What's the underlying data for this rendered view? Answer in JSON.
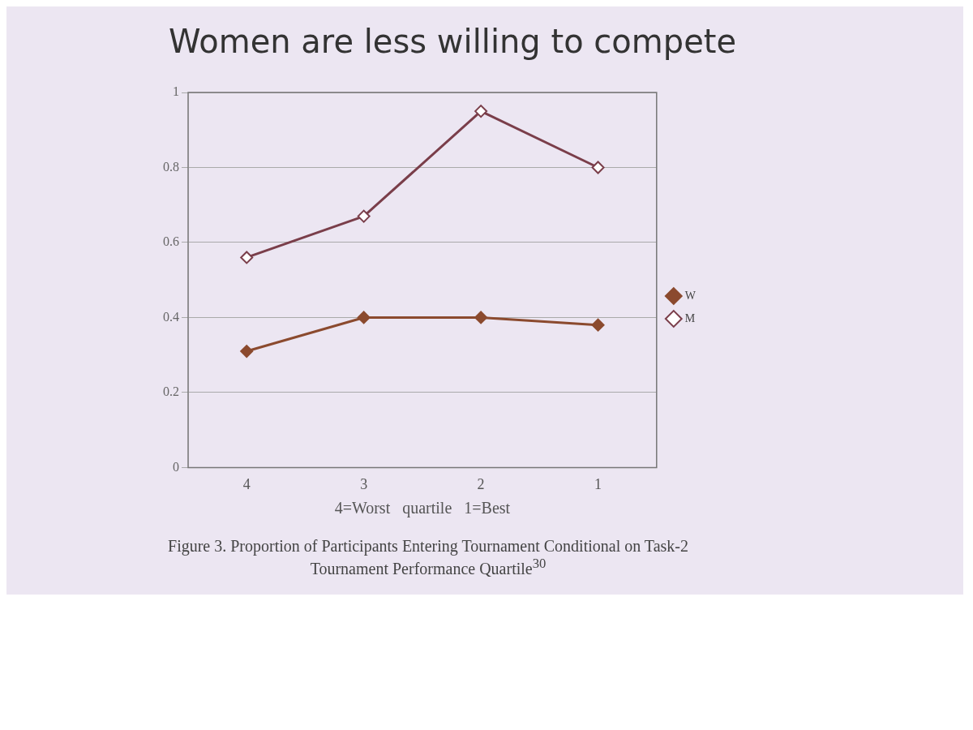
{
  "chart_data": {
    "type": "line",
    "title": "Women are less willing to compete",
    "xlabel": "4=Worst   quartile   1=Best",
    "annotations": [
      "Figure 3. Proportion of Participants Entering Tournament Conditional on Task-2 Tournament Performance Quartile$^{30}$"
    ],
    "categories": [
      "4",
      "3",
      "2",
      "1"
    ],
    "series": [
      {
        "name": "W",
        "color": "#8b4a2e",
        "values": [
          0.31,
          0.4,
          0.4,
          0.38
        ]
      },
      {
        "name": "M",
        "color": "#7a3e4a",
        "values": [
          0.56,
          0.67,
          0.95,
          0.8
        ]
      }
    ],
    "ylim": [
      0,
      1
    ],
    "yticks": [
      0,
      0.2,
      0.4,
      0.6,
      0.8,
      1
    ],
    "grid": "y",
    "legend": "right",
    "marker": "diamond",
    "line_style": "solid"
  }
}
